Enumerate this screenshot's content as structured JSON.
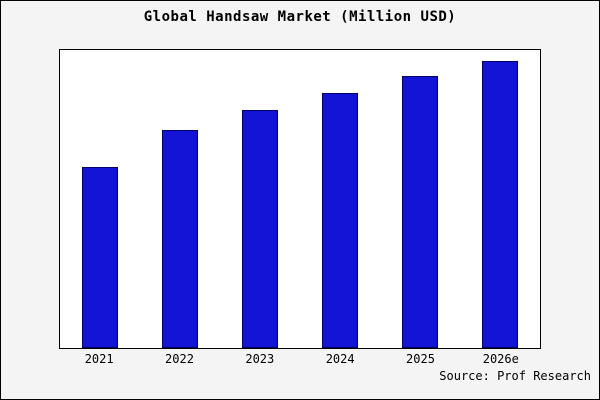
{
  "chart_data": {
    "type": "bar",
    "title": "Global Handsaw Market (Million USD)",
    "categories": [
      "2021",
      "2022",
      "2023",
      "2024",
      "2025",
      "2026e"
    ],
    "values": [
      63,
      76,
      83,
      89,
      95,
      100
    ],
    "xlabel": "",
    "ylabel": "",
    "ylim": [
      0,
      104
    ],
    "grid": false,
    "legend": "none",
    "bar_fill": "#1414d6",
    "bar_edge": "#000066"
  },
  "source": {
    "label": "Source: Prof Research"
  }
}
